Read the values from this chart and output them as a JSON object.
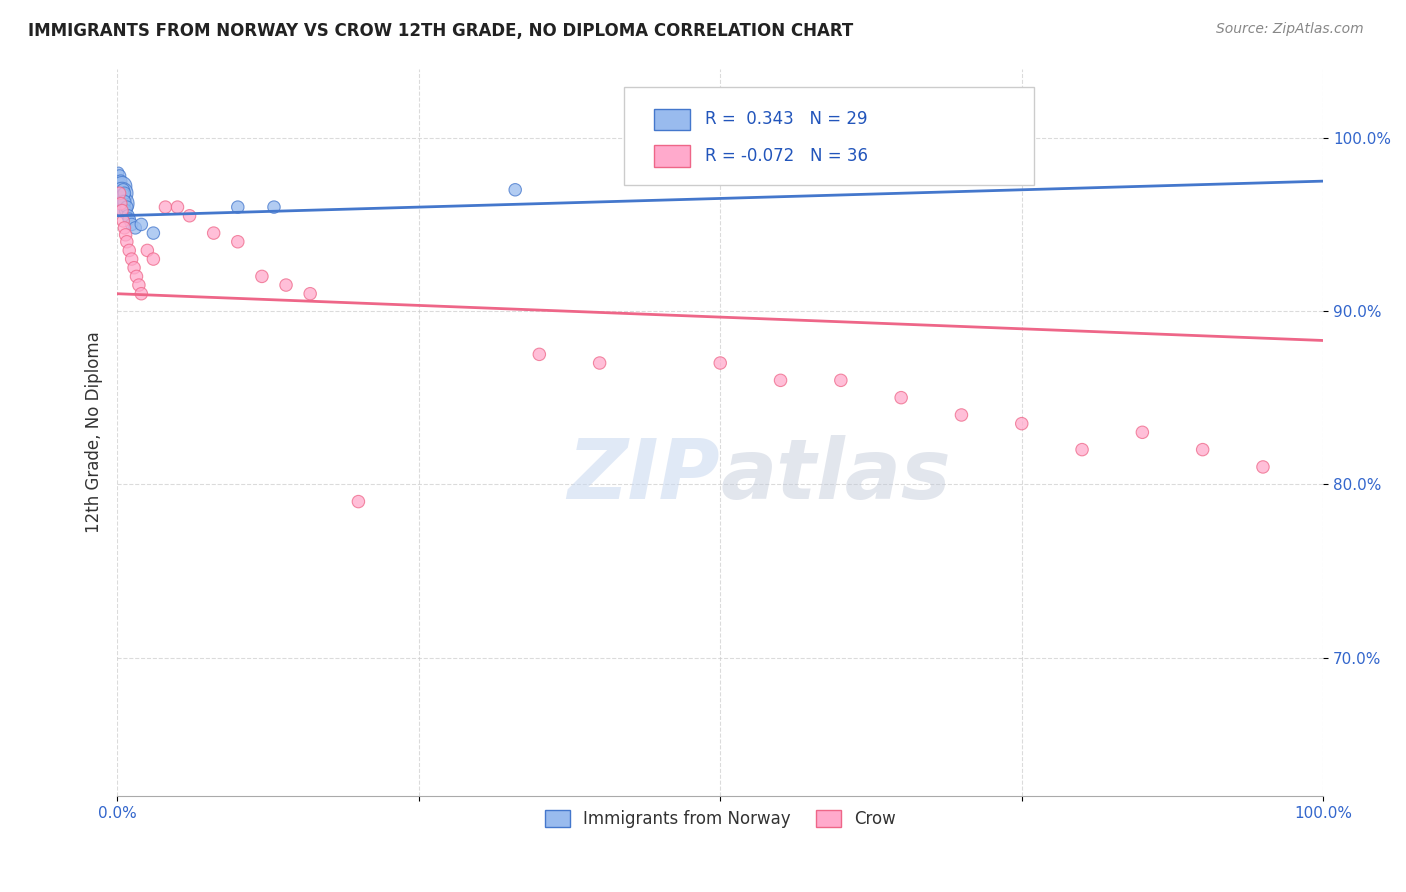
{
  "title": "IMMIGRANTS FROM NORWAY VS CROW 12TH GRADE, NO DIPLOMA CORRELATION CHART",
  "source": "Source: ZipAtlas.com",
  "ylabel": "12th Grade, No Diploma",
  "xlabel": "",
  "blue_label": "Immigrants from Norway",
  "pink_label": "Crow",
  "blue_R": 0.343,
  "blue_N": 29,
  "pink_R": -0.072,
  "pink_N": 36,
  "xlim": [
    0,
    1.0
  ],
  "ylim": [
    0.62,
    1.04
  ],
  "ytick_positions": [
    0.7,
    0.8,
    0.9,
    1.0
  ],
  "ytick_labels": [
    "70.0%",
    "80.0%",
    "90.0%",
    "100.0%"
  ],
  "blue_color": "#99BBEE",
  "pink_color": "#FFAACC",
  "blue_line_color": "#4477CC",
  "pink_line_color": "#EE6688",
  "watermark_zip": "ZIP",
  "watermark_atlas": "atlas",
  "blue_x": [
    0.001,
    0.001,
    0.002,
    0.002,
    0.002,
    0.002,
    0.003,
    0.003,
    0.003,
    0.004,
    0.004,
    0.004,
    0.005,
    0.005,
    0.005,
    0.005,
    0.006,
    0.006,
    0.007,
    0.008,
    0.009,
    0.01,
    0.012,
    0.015,
    0.02,
    0.03,
    0.1,
    0.13,
    0.33
  ],
  "blue_y": [
    0.98,
    0.975,
    0.978,
    0.973,
    0.968,
    0.963,
    0.975,
    0.97,
    0.965,
    0.972,
    0.968,
    0.962,
    0.97,
    0.967,
    0.963,
    0.958,
    0.968,
    0.963,
    0.958,
    0.96,
    0.955,
    0.953,
    0.95,
    0.948,
    0.95,
    0.945,
    0.96,
    0.96,
    0.97
  ],
  "blue_sizes": [
    60,
    70,
    80,
    100,
    120,
    150,
    80,
    100,
    120,
    200,
    250,
    300,
    80,
    90,
    100,
    110,
    80,
    90,
    80,
    80,
    80,
    80,
    80,
    80,
    80,
    80,
    80,
    80,
    80
  ],
  "pink_x": [
    0.002,
    0.003,
    0.004,
    0.005,
    0.006,
    0.007,
    0.008,
    0.01,
    0.012,
    0.014,
    0.016,
    0.018,
    0.02,
    0.025,
    0.03,
    0.04,
    0.05,
    0.06,
    0.08,
    0.1,
    0.12,
    0.14,
    0.16,
    0.2,
    0.35,
    0.4,
    0.5,
    0.55,
    0.6,
    0.65,
    0.7,
    0.75,
    0.8,
    0.85,
    0.9,
    0.95
  ],
  "pink_y": [
    0.968,
    0.962,
    0.958,
    0.952,
    0.948,
    0.944,
    0.94,
    0.935,
    0.93,
    0.925,
    0.92,
    0.915,
    0.91,
    0.935,
    0.93,
    0.96,
    0.96,
    0.955,
    0.945,
    0.94,
    0.92,
    0.915,
    0.91,
    0.79,
    0.875,
    0.87,
    0.87,
    0.86,
    0.86,
    0.85,
    0.84,
    0.835,
    0.82,
    0.83,
    0.82,
    0.81
  ],
  "pink_sizes": [
    80,
    80,
    80,
    80,
    80,
    80,
    80,
    80,
    80,
    80,
    80,
    80,
    80,
    80,
    80,
    80,
    80,
    80,
    80,
    80,
    80,
    80,
    80,
    80,
    80,
    80,
    80,
    80,
    80,
    80,
    80,
    80,
    80,
    80,
    80,
    80
  ]
}
